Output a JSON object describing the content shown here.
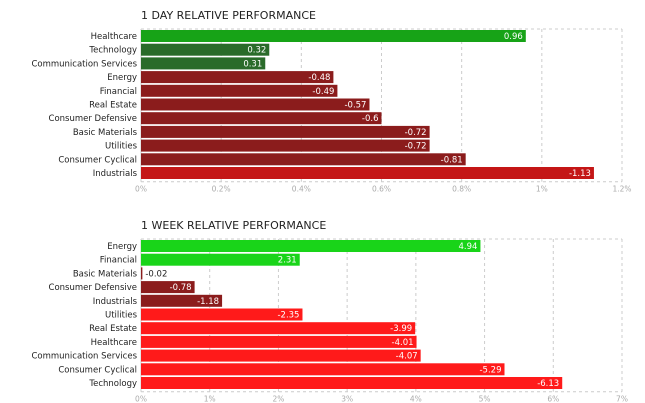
{
  "colors": {
    "pos_strong": "#17a317",
    "pos_dark": "#2a6b2a",
    "pos_bright": "#19d419",
    "neg_dark": "#8b1c1c",
    "neg_mid": "#c41616",
    "neg_bright": "#ff1a1a",
    "grid": "#cccccc",
    "tick": "#aaaaaa"
  },
  "chart_data": [
    {
      "type": "bar",
      "orientation": "horizontal",
      "title": "1 DAY RELATIVE PERFORMANCE",
      "categories": [
        "Healthcare",
        "Technology",
        "Communication Services",
        "Energy",
        "Financial",
        "Real Estate",
        "Consumer Defensive",
        "Basic Materials",
        "Utilities",
        "Consumer Cyclical",
        "Industrials"
      ],
      "values": [
        0.96,
        0.32,
        0.31,
        -0.48,
        -0.49,
        -0.57,
        -0.6,
        -0.72,
        -0.72,
        -0.81,
        -1.13
      ],
      "value_labels": [
        "0.96",
        "0.32",
        "0.31",
        "-0.48",
        "-0.49",
        "-0.57",
        "-0.6",
        "-0.72",
        "-0.72",
        "-0.81",
        "-1.13"
      ],
      "bar_colors": [
        "pos_strong",
        "pos_dark",
        "pos_dark",
        "neg_dark",
        "neg_dark",
        "neg_dark",
        "neg_dark",
        "neg_dark",
        "neg_dark",
        "neg_dark",
        "neg_mid"
      ],
      "xlim": [
        0,
        1.2
      ],
      "xticks": [
        0,
        0.2,
        0.4,
        0.6,
        0.8,
        1,
        1.2
      ],
      "xtick_labels": [
        "0%",
        "0.2%",
        "0.4%",
        "0.6%",
        "0.8%",
        "1%",
        "1.2%"
      ],
      "bar_length": "absolute value",
      "grid": true
    },
    {
      "type": "bar",
      "orientation": "horizontal",
      "title": "1 WEEK RELATIVE PERFORMANCE",
      "categories": [
        "Energy",
        "Financial",
        "Basic Materials",
        "Consumer Defensive",
        "Industrials",
        "Utilities",
        "Real Estate",
        "Healthcare",
        "Communication Services",
        "Consumer Cyclical",
        "Technology"
      ],
      "values": [
        4.94,
        2.31,
        -0.02,
        -0.78,
        -1.18,
        -2.35,
        -3.99,
        -4.01,
        -4.07,
        -5.29,
        -6.13
      ],
      "value_labels": [
        "4.94",
        "2.31",
        "-0.02",
        "-0.78",
        "-1.18",
        "-2.35",
        "-3.99",
        "-4.01",
        "-4.07",
        "-5.29",
        "-6.13"
      ],
      "bar_colors": [
        "pos_bright",
        "pos_bright",
        "neg_dark",
        "neg_dark",
        "neg_dark",
        "neg_bright",
        "neg_bright",
        "neg_bright",
        "neg_bright",
        "neg_bright",
        "neg_bright"
      ],
      "xlim": [
        0,
        7
      ],
      "xticks": [
        0,
        1,
        2,
        3,
        4,
        5,
        6,
        7
      ],
      "xtick_labels": [
        "0%",
        "1%",
        "2%",
        "3%",
        "4%",
        "5%",
        "6%",
        "7%"
      ],
      "bar_length": "absolute value",
      "grid": true
    }
  ]
}
